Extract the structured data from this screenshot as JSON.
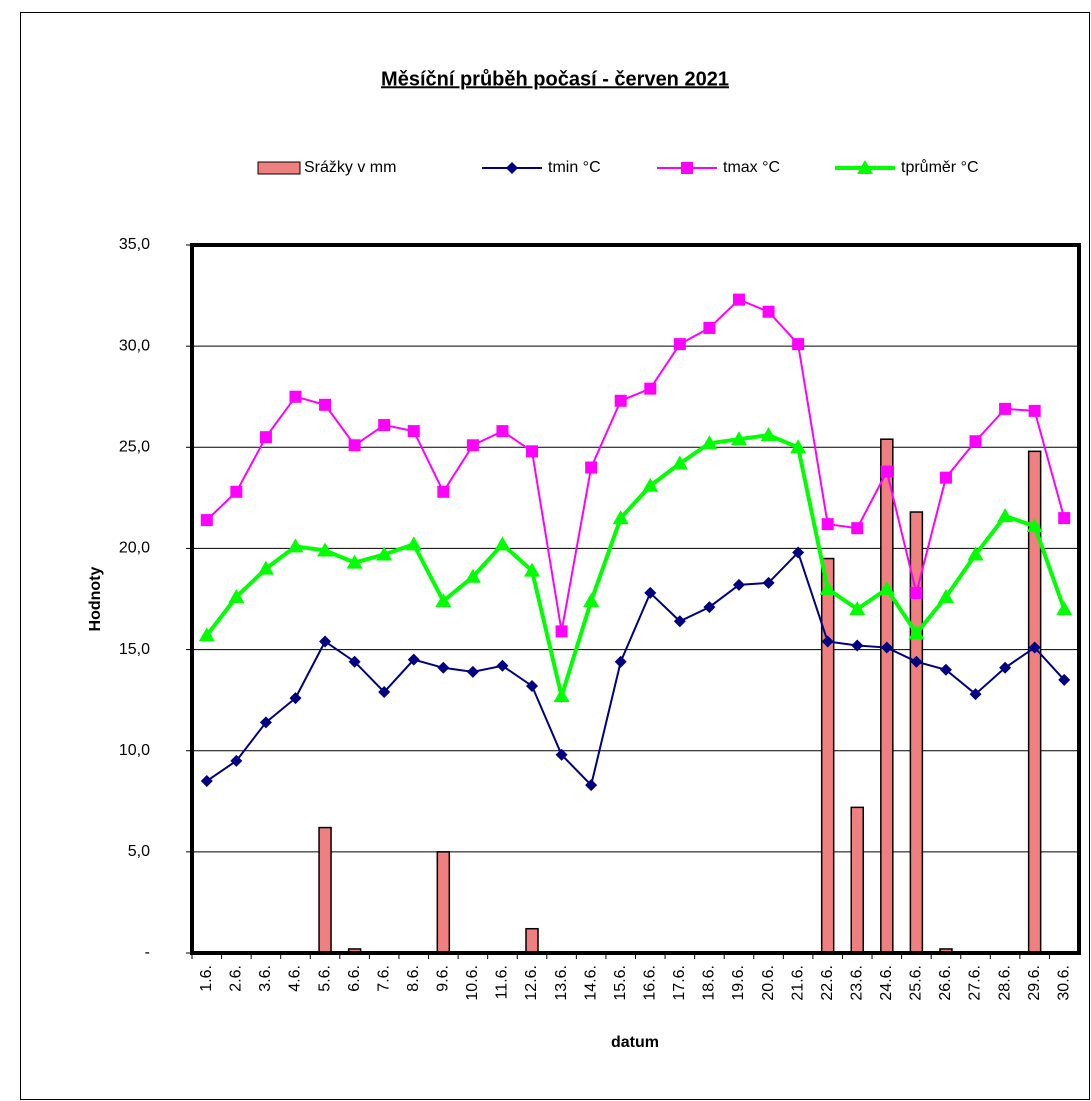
{
  "chart_data": {
    "type": "bar",
    "title": "Měsíční průběh počasí - červen 2021",
    "x_label": "datum",
    "y_label": "Hodnoty",
    "categories": [
      "1.6.",
      "2.6.",
      "3.6.",
      "4.6.",
      "5.6.",
      "6.6.",
      "7.6.",
      "8.6.",
      "9.6.",
      "10.6.",
      "11.6.",
      "12.6.",
      "13.6.",
      "14.6.",
      "15.6.",
      "16.6.",
      "17.6.",
      "18.6.",
      "19.6.",
      "20.6.",
      "21.6.",
      "22.6.",
      "23.6.",
      "24.6.",
      "25.6.",
      "26.6.",
      "27.6.",
      "28.6.",
      "29.6.",
      "30.6."
    ],
    "series": [
      {
        "name": "Srážky v mm",
        "type": "bar",
        "color": "#f08080",
        "values": [
          0,
          0,
          0,
          0,
          6.2,
          0.2,
          0,
          0,
          5.0,
          0,
          0,
          1.2,
          0,
          0,
          0,
          0,
          0,
          0,
          0,
          0,
          0,
          19.5,
          7.2,
          25.4,
          21.8,
          0.2,
          0,
          0,
          24.8,
          0
        ]
      },
      {
        "name": "tmin °C",
        "type": "line",
        "marker": "diamond",
        "color": "#000080",
        "values": [
          8.5,
          9.5,
          11.4,
          12.6,
          15.4,
          14.4,
          12.9,
          14.5,
          14.1,
          13.9,
          14.2,
          13.2,
          9.8,
          8.3,
          14.4,
          17.8,
          16.4,
          17.1,
          18.2,
          18.3,
          19.8,
          15.4,
          15.2,
          15.1,
          14.4,
          14.0,
          12.8,
          14.1,
          15.1,
          13.5
        ]
      },
      {
        "name": "tmax °C",
        "type": "line",
        "marker": "square",
        "color": "#ff00ff",
        "values": [
          21.4,
          22.8,
          25.5,
          27.5,
          27.1,
          25.1,
          26.1,
          25.8,
          22.8,
          25.1,
          25.8,
          24.8,
          15.9,
          24.0,
          27.3,
          27.9,
          30.1,
          30.9,
          32.3,
          31.7,
          30.1,
          21.2,
          21.0,
          23.8,
          17.8,
          23.5,
          25.3,
          26.9,
          26.8,
          21.5
        ]
      },
      {
        "name": "tprůměr °C",
        "type": "line",
        "marker": "triangle",
        "color": "#00ff00",
        "values": [
          15.7,
          17.6,
          19.0,
          20.1,
          19.9,
          19.3,
          19.7,
          20.2,
          17.4,
          18.6,
          20.2,
          18.9,
          12.7,
          17.4,
          21.5,
          23.1,
          24.2,
          25.2,
          25.4,
          25.6,
          25.0,
          18.0,
          17.0,
          18.0,
          15.8,
          17.6,
          19.7,
          21.6,
          21.1,
          17.0
        ]
      }
    ],
    "ylim": [
      0,
      35
    ],
    "yticks": [
      {
        "value": 0,
        "label": "-"
      },
      {
        "value": 5,
        "label": "5,0"
      },
      {
        "value": 10,
        "label": "10,0"
      },
      {
        "value": 15,
        "label": "15,0"
      },
      {
        "value": 20,
        "label": "20,0"
      },
      {
        "value": 25,
        "label": "25,0"
      },
      {
        "value": 30,
        "label": "30,0"
      },
      {
        "value": 35,
        "label": "35,0"
      }
    ],
    "grid": true
  }
}
